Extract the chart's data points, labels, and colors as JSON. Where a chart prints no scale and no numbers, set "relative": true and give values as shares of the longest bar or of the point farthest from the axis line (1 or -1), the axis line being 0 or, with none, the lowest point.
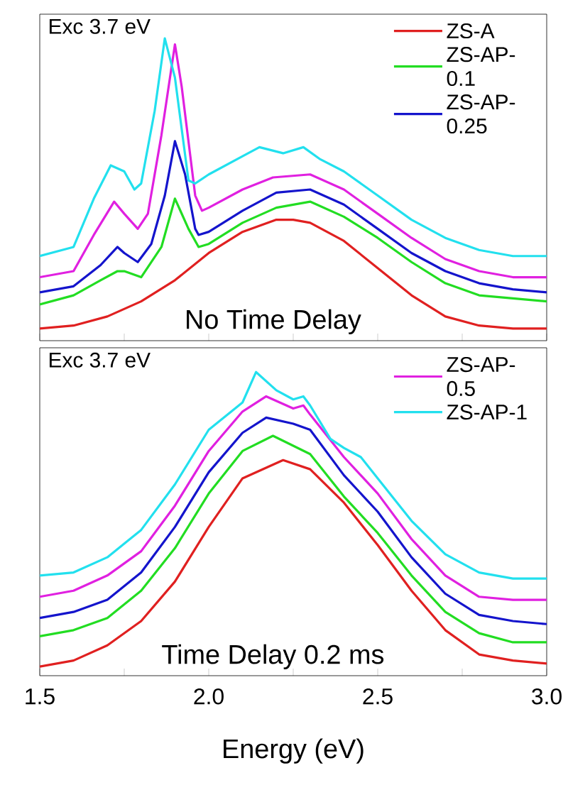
{
  "chart_data": [
    {
      "type": "line",
      "relative": true,
      "annotations": [
        "Exc 3.7 eV",
        "No Time Delay"
      ],
      "legend": "top right",
      "tick_labels": false,
      "xlim": [
        1.5,
        3.0
      ],
      "xticks": [
        1.5,
        {
          "value": 1.75,
          "label": null
        },
        2.0,
        {
          "value": 2.25,
          "label": null
        },
        2.5,
        {
          "value": 2.75,
          "label": null
        },
        3.0
      ],
      "series": [
        {
          "name": "ZS-A",
          "color": "#e02020",
          "x": [
            1.5,
            1.6,
            1.7,
            1.8,
            1.9,
            2.0,
            2.1,
            2.2,
            2.25,
            2.3,
            2.4,
            2.5,
            2.6,
            2.7,
            2.8,
            2.9,
            3.0
          ],
          "values": [
            0.04,
            0.05,
            0.08,
            0.13,
            0.2,
            0.29,
            0.36,
            0.4,
            0.4,
            0.39,
            0.33,
            0.24,
            0.15,
            0.08,
            0.05,
            0.04,
            0.04
          ]
        },
        {
          "name": "ZS-AP-0.1",
          "color": "#22dd22",
          "x": [
            1.5,
            1.6,
            1.68,
            1.73,
            1.75,
            1.8,
            1.86,
            1.9,
            1.94,
            1.97,
            2.0,
            2.1,
            2.2,
            2.3,
            2.4,
            2.5,
            2.6,
            2.7,
            2.8,
            2.9,
            3.0
          ],
          "values": [
            0.12,
            0.15,
            0.2,
            0.23,
            0.23,
            0.21,
            0.31,
            0.47,
            0.37,
            0.31,
            0.32,
            0.39,
            0.44,
            0.46,
            0.41,
            0.34,
            0.26,
            0.19,
            0.15,
            0.14,
            0.13
          ]
        },
        {
          "name": "ZS-AP-0.25",
          "color": "#1414cc",
          "x": [
            1.5,
            1.6,
            1.68,
            1.73,
            1.75,
            1.79,
            1.83,
            1.87,
            1.9,
            1.93,
            1.96,
            1.97,
            2.0,
            2.1,
            2.2,
            2.3,
            2.4,
            2.5,
            2.6,
            2.7,
            2.8,
            2.9,
            3.0
          ],
          "values": [
            0.16,
            0.18,
            0.25,
            0.31,
            0.29,
            0.26,
            0.32,
            0.48,
            0.66,
            0.55,
            0.37,
            0.35,
            0.36,
            0.43,
            0.49,
            0.5,
            0.45,
            0.37,
            0.29,
            0.23,
            0.19,
            0.17,
            0.16
          ]
        },
        {
          "color": "#e020e0",
          "x": [
            1.5,
            1.6,
            1.66,
            1.72,
            1.75,
            1.79,
            1.82,
            1.86,
            1.9,
            1.92,
            1.96,
            1.98,
            2.0,
            2.1,
            2.19,
            2.3,
            2.4,
            2.5,
            2.6,
            2.7,
            2.8,
            2.9,
            3.0
          ],
          "values": [
            0.21,
            0.23,
            0.35,
            0.46,
            0.42,
            0.37,
            0.42,
            0.68,
            0.98,
            0.84,
            0.48,
            0.43,
            0.44,
            0.5,
            0.54,
            0.55,
            0.5,
            0.42,
            0.34,
            0.27,
            0.23,
            0.21,
            0.21
          ]
        },
        {
          "color": "#22e0ee",
          "x": [
            1.5,
            1.6,
            1.66,
            1.71,
            1.75,
            1.78,
            1.8,
            1.84,
            1.87,
            1.9,
            1.94,
            1.96,
            2.0,
            2.1,
            2.15,
            2.22,
            2.28,
            2.33,
            2.4,
            2.5,
            2.6,
            2.7,
            2.8,
            2.9,
            3.0
          ],
          "values": [
            0.28,
            0.31,
            0.47,
            0.58,
            0.56,
            0.5,
            0.52,
            0.76,
            1.0,
            0.87,
            0.53,
            0.52,
            0.55,
            0.61,
            0.64,
            0.62,
            0.64,
            0.6,
            0.56,
            0.48,
            0.4,
            0.34,
            0.3,
            0.28,
            0.28
          ]
        }
      ]
    },
    {
      "type": "line",
      "relative": true,
      "annotations": [
        "Exc 3.7 eV",
        "Time Delay 0.2 ms"
      ],
      "legend": "top right",
      "tick_labels": "x",
      "xlabel": "Energy (eV)",
      "xlim": [
        1.5,
        3.0
      ],
      "xticks": [
        1.5,
        {
          "value": 1.75,
          "label": null
        },
        {
          "value": 2.0,
          "label": "2.0"
        },
        {
          "value": 2.25,
          "label": null
        },
        2.5,
        {
          "value": 2.75,
          "label": null
        },
        {
          "value": 3.0,
          "label": "3.0"
        }
      ],
      "series": [
        {
          "color": "#e02020",
          "x": [
            1.5,
            1.6,
            1.7,
            1.8,
            1.9,
            2.0,
            2.1,
            2.22,
            2.3,
            2.4,
            2.5,
            2.6,
            2.7,
            2.8,
            2.9,
            3.0
          ],
          "values": [
            0.03,
            0.05,
            0.1,
            0.18,
            0.31,
            0.49,
            0.65,
            0.71,
            0.68,
            0.57,
            0.43,
            0.28,
            0.15,
            0.07,
            0.05,
            0.04
          ]
        },
        {
          "color": "#22dd22",
          "x": [
            1.5,
            1.6,
            1.7,
            1.8,
            1.9,
            2.0,
            2.1,
            2.19,
            2.3,
            2.4,
            2.5,
            2.6,
            2.7,
            2.8,
            2.9,
            3.0
          ],
          "values": [
            0.13,
            0.15,
            0.19,
            0.28,
            0.42,
            0.6,
            0.74,
            0.79,
            0.73,
            0.59,
            0.47,
            0.33,
            0.21,
            0.14,
            0.11,
            0.11
          ]
        },
        {
          "color": "#1414cc",
          "x": [
            1.5,
            1.6,
            1.7,
            1.8,
            1.9,
            2.0,
            2.1,
            2.17,
            2.25,
            2.3,
            2.4,
            2.5,
            2.6,
            2.7,
            2.8,
            2.9,
            3.0
          ],
          "values": [
            0.19,
            0.21,
            0.25,
            0.34,
            0.49,
            0.67,
            0.8,
            0.85,
            0.83,
            0.81,
            0.66,
            0.54,
            0.39,
            0.27,
            0.2,
            0.18,
            0.17
          ]
        },
        {
          "name": "ZS-AP-0.5",
          "color": "#e020e0",
          "x": [
            1.5,
            1.6,
            1.7,
            1.8,
            1.9,
            2.0,
            2.1,
            2.17,
            2.25,
            2.28,
            2.3,
            2.4,
            2.5,
            2.6,
            2.7,
            2.8,
            2.9,
            3.0
          ],
          "values": [
            0.26,
            0.28,
            0.33,
            0.41,
            0.56,
            0.74,
            0.87,
            0.92,
            0.88,
            0.89,
            0.86,
            0.72,
            0.6,
            0.45,
            0.33,
            0.26,
            0.25,
            0.25
          ]
        },
        {
          "name": "ZS-AP-1",
          "color": "#22e0ee",
          "x": [
            1.5,
            1.6,
            1.7,
            1.8,
            1.9,
            2.0,
            2.1,
            2.14,
            2.2,
            2.25,
            2.28,
            2.3,
            2.36,
            2.4,
            2.45,
            2.5,
            2.6,
            2.7,
            2.8,
            2.9,
            3.0
          ],
          "values": [
            0.33,
            0.34,
            0.39,
            0.48,
            0.63,
            0.81,
            0.9,
            1.0,
            0.94,
            0.91,
            0.92,
            0.89,
            0.78,
            0.75,
            0.72,
            0.65,
            0.51,
            0.4,
            0.34,
            0.32,
            0.32
          ]
        }
      ]
    }
  ]
}
